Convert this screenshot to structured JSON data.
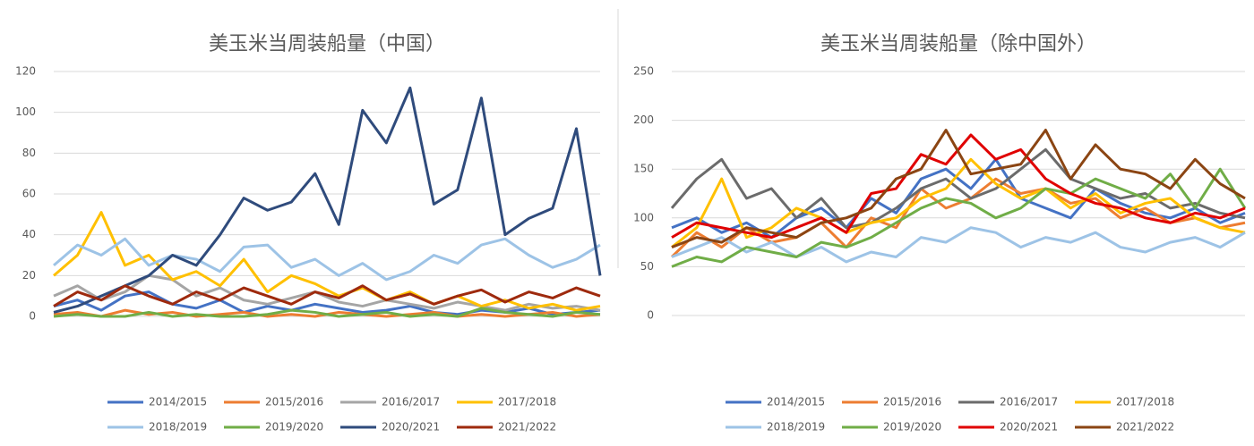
{
  "chart_data": [
    {
      "type": "line",
      "title": "美玉米当周装船量（中国）",
      "ylim": [
        0,
        120
      ],
      "yticks": [
        0,
        20,
        40,
        60,
        80,
        100,
        120
      ],
      "grid": true,
      "series": [
        {
          "name": "2014/2015",
          "color": "#4472c4",
          "values": [
            5,
            8,
            3,
            10,
            12,
            6,
            4,
            8,
            2,
            5,
            3,
            6,
            4,
            2,
            3,
            5,
            2,
            1,
            3,
            2,
            4,
            1,
            2,
            3
          ]
        },
        {
          "name": "2015/2016",
          "color": "#ed7d31",
          "values": [
            1,
            2,
            0,
            3,
            1,
            2,
            0,
            1,
            2,
            0,
            1,
            0,
            2,
            1,
            0,
            1,
            2,
            0,
            1,
            0,
            1,
            2,
            0,
            1
          ]
        },
        {
          "name": "2016/2017",
          "color": "#a5a5a5",
          "values": [
            10,
            15,
            8,
            12,
            20,
            18,
            10,
            14,
            8,
            6,
            9,
            12,
            7,
            5,
            8,
            6,
            4,
            7,
            5,
            3,
            6,
            4,
            5,
            3
          ]
        },
        {
          "name": "2017/2018",
          "color": "#ffc000",
          "values": [
            20,
            30,
            51,
            25,
            30,
            18,
            22,
            15,
            28,
            12,
            20,
            16,
            10,
            14,
            8,
            12,
            6,
            10,
            5,
            8,
            4,
            6,
            3,
            5
          ]
        },
        {
          "name": "2018/2019",
          "color": "#9dc3e6",
          "values": [
            25,
            35,
            30,
            38,
            25,
            30,
            28,
            22,
            34,
            35,
            24,
            28,
            20,
            26,
            18,
            22,
            30,
            26,
            35,
            38,
            30,
            24,
            28,
            35
          ]
        },
        {
          "name": "2019/2020",
          "color": "#70ad47",
          "values": [
            0,
            1,
            0,
            0,
            2,
            0,
            1,
            0,
            0,
            1,
            3,
            2,
            0,
            1,
            2,
            0,
            1,
            0,
            4,
            2,
            1,
            0,
            2,
            1
          ]
        },
        {
          "name": "2020/2021",
          "color": "#2f4b7c",
          "values": [
            2,
            5,
            10,
            15,
            20,
            30,
            25,
            40,
            58,
            52,
            56,
            70,
            45,
            101,
            85,
            112,
            55,
            62,
            107,
            40,
            48,
            53,
            92,
            20
          ]
        },
        {
          "name": "2021/2022",
          "color": "#9e2a0e",
          "values": [
            5,
            12,
            8,
            15,
            10,
            6,
            12,
            8,
            14,
            10,
            6,
            12,
            9,
            15,
            8,
            11,
            6,
            10,
            13,
            7,
            12,
            9,
            14,
            10
          ]
        }
      ]
    },
    {
      "type": "line",
      "title": "美玉米当周装船量（除中国外）",
      "ylim": [
        0,
        250
      ],
      "yticks": [
        0,
        50,
        100,
        150,
        200,
        250
      ],
      "grid": true,
      "series": [
        {
          "name": "2014/2015",
          "color": "#4472c4",
          "values": [
            90,
            100,
            85,
            95,
            80,
            100,
            110,
            90,
            120,
            105,
            140,
            150,
            130,
            160,
            120,
            110,
            100,
            130,
            115,
            105,
            100,
            110,
            95,
            105
          ]
        },
        {
          "name": "2015/2016",
          "color": "#ed7d31",
          "values": [
            60,
            85,
            70,
            90,
            75,
            80,
            95,
            70,
            100,
            90,
            130,
            110,
            120,
            140,
            125,
            130,
            115,
            120,
            100,
            110,
            95,
            100,
            90,
            95
          ]
        },
        {
          "name": "2016/2017",
          "color": "#6b6b6b",
          "values": [
            110,
            140,
            160,
            120,
            130,
            100,
            120,
            90,
            95,
            110,
            130,
            140,
            120,
            130,
            150,
            170,
            140,
            130,
            120,
            125,
            110,
            115,
            105,
            100
          ]
        },
        {
          "name": "2017/2018",
          "color": "#ffc000",
          "values": [
            70,
            90,
            140,
            80,
            90,
            110,
            100,
            85,
            95,
            100,
            120,
            130,
            160,
            135,
            120,
            130,
            110,
            125,
            105,
            115,
            120,
            100,
            90,
            85
          ]
        },
        {
          "name": "2018/2019",
          "color": "#9dc3e6",
          "values": [
            60,
            70,
            80,
            65,
            75,
            60,
            70,
            55,
            65,
            60,
            80,
            75,
            90,
            85,
            70,
            80,
            75,
            85,
            70,
            65,
            75,
            80,
            70,
            85
          ]
        },
        {
          "name": "2019/2020",
          "color": "#70ad47",
          "values": [
            50,
            60,
            55,
            70,
            65,
            60,
            75,
            70,
            80,
            95,
            110,
            120,
            115,
            100,
            110,
            130,
            125,
            140,
            130,
            120,
            145,
            110,
            150,
            110
          ]
        },
        {
          "name": "2020/2021",
          "color": "#e00000",
          "values": [
            80,
            95,
            90,
            85,
            80,
            90,
            100,
            85,
            125,
            130,
            165,
            155,
            185,
            160,
            170,
            140,
            125,
            115,
            110,
            100,
            95,
            105,
            100,
            110
          ]
        },
        {
          "name": "2021/2022",
          "color": "#8b4513",
          "values": [
            70,
            80,
            75,
            90,
            85,
            80,
            95,
            100,
            110,
            140,
            150,
            190,
            145,
            150,
            155,
            190,
            140,
            175,
            150,
            145,
            130,
            160,
            135,
            120
          ]
        }
      ]
    }
  ]
}
